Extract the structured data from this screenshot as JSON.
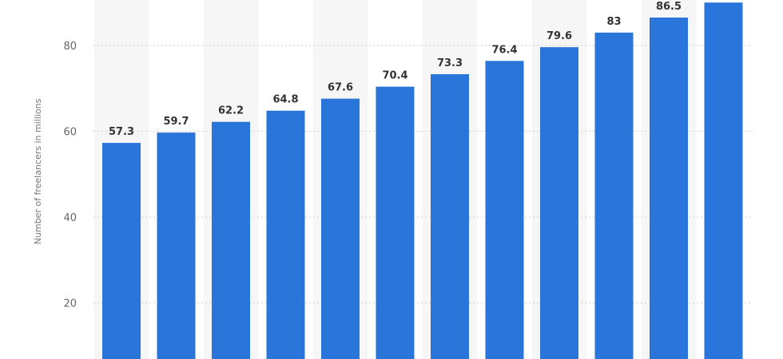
{
  "chart_data": {
    "type": "bar",
    "categories": [
      "",
      "",
      "",
      "",
      "",
      "",
      "",
      "",
      "",
      "",
      "",
      ""
    ],
    "values": [
      57.3,
      59.7,
      62.2,
      64.8,
      67.6,
      70.4,
      73.3,
      76.4,
      79.6,
      83,
      86.5,
      90
    ],
    "data_labels": [
      "57.3",
      "59.7",
      "62.2",
      "64.8",
      "67.6",
      "70.4",
      "73.3",
      "76.4",
      "79.6",
      "83",
      "86.5",
      ""
    ],
    "ylabel": "Number of freelancers in millions",
    "yticks": [
      20,
      40,
      60,
      80
    ],
    "ytick_labels": [
      "20",
      "40",
      "60",
      "80"
    ],
    "ylim": [
      0,
      100
    ],
    "grid": true,
    "legend": "none",
    "bar_color": "#2a75d9",
    "band_color": "#f6f6f6",
    "grid_color": "#cfcfcf"
  }
}
